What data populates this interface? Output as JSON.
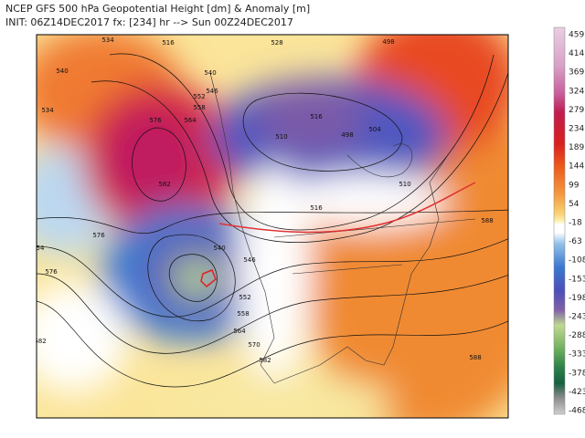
{
  "header": {
    "title": "NCEP GFS 500 hPa Geopotential Height [dm] & Anomaly [m]",
    "init": "INIT: 06Z14DEC2017 fx: [234] hr --> Sun 00Z24DEC2017"
  },
  "colorbar": {
    "labels": [
      "459",
      "414",
      "369",
      "324",
      "279",
      "234",
      "189",
      "144",
      "99",
      "54",
      "-18",
      "-63",
      "-108",
      "-153",
      "-198",
      "-243",
      "-288",
      "-333",
      "-378",
      "-423",
      "-468"
    ]
  },
  "contour_labels": [
    "534",
    "516",
    "540",
    "534",
    "540",
    "546",
    "552",
    "558",
    "564",
    "576",
    "582",
    "528",
    "516",
    "504",
    "498",
    "510",
    "516",
    "510",
    "540",
    "546",
    "552",
    "558",
    "564",
    "570",
    "576",
    "582",
    "588",
    "576",
    "582",
    "588",
    "498",
    "54"
  ]
}
